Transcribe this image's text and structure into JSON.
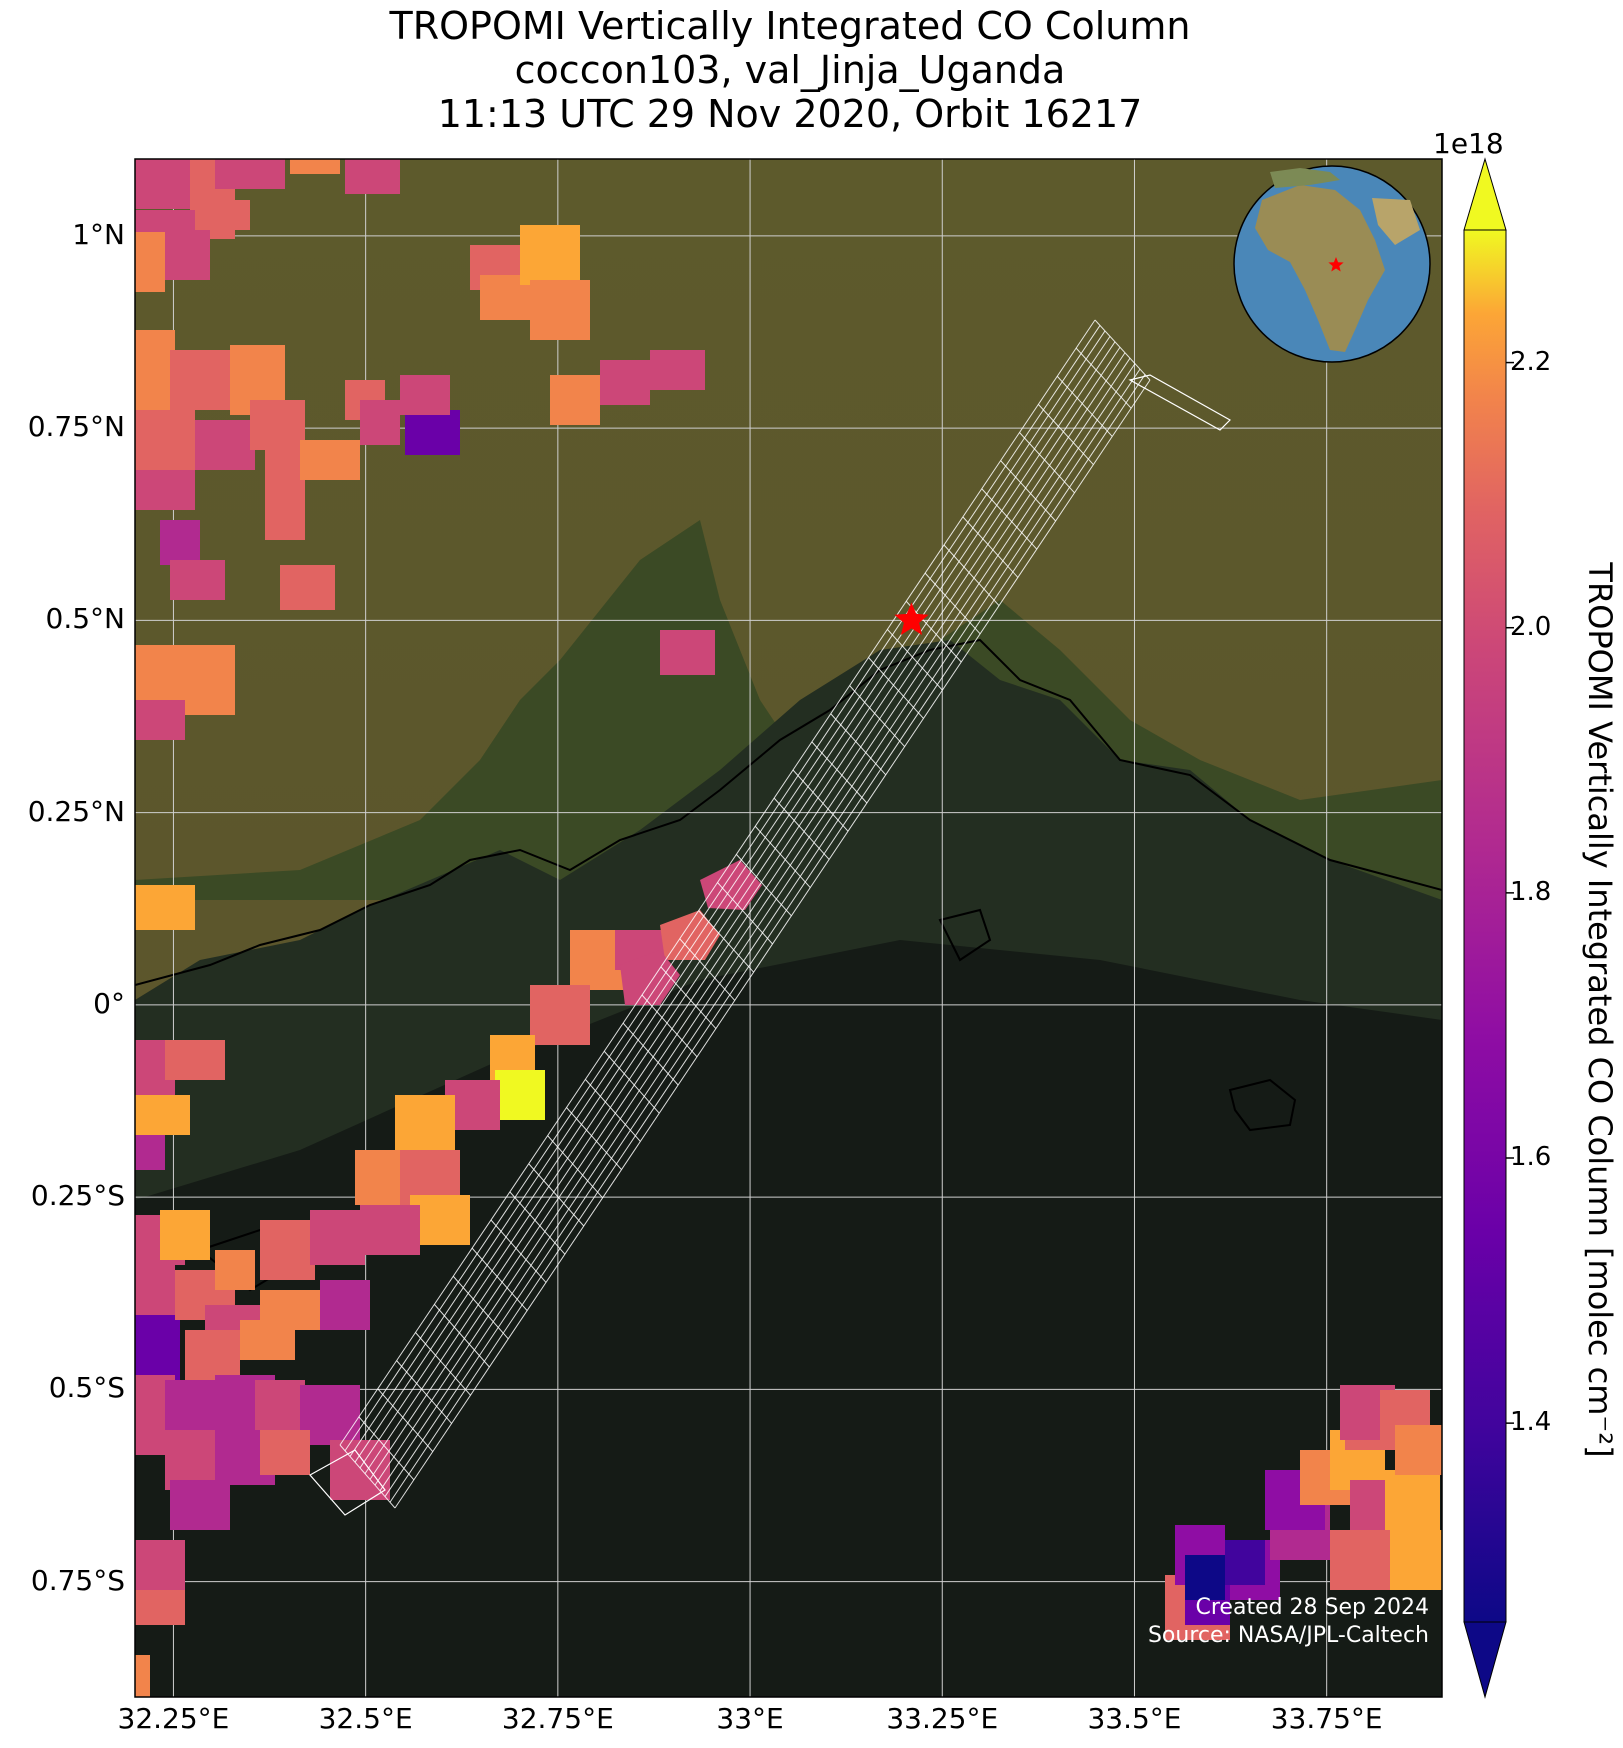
{
  "title": {
    "line1": "TROPOMI Vertically Integrated CO Column",
    "line2": "coccon103, val_Jinja_Uganda",
    "line3": "11:13 UTC 29 Nov 2020, Orbit 16217"
  },
  "axes": {
    "lat_ticks": [
      {
        "value": 1.0,
        "label": "1°N"
      },
      {
        "value": 0.75,
        "label": "0.75°N"
      },
      {
        "value": 0.5,
        "label": "0.5°N"
      },
      {
        "value": 0.25,
        "label": "0.25°N"
      },
      {
        "value": 0.0,
        "label": "0°"
      },
      {
        "value": -0.25,
        "label": "0.25°S"
      },
      {
        "value": -0.5,
        "label": "0.5°S"
      },
      {
        "value": -0.75,
        "label": "0.75°S"
      }
    ],
    "lon_ticks": [
      {
        "value": 32.25,
        "label": "32.25°E"
      },
      {
        "value": 32.5,
        "label": "32.5°E"
      },
      {
        "value": 32.75,
        "label": "32.75°E"
      },
      {
        "value": 33.0,
        "label": "33°E"
      },
      {
        "value": 33.25,
        "label": "33.25°E"
      },
      {
        "value": 33.5,
        "label": "33.5°E"
      },
      {
        "value": 33.75,
        "label": "33.75°E"
      }
    ],
    "lon_range": [
      32.2,
      33.9
    ],
    "lat_range": [
      -0.9,
      1.1
    ]
  },
  "colorbar": {
    "label": "TROPOMI Vertically Integrated CO Column [molec cm⁻²]",
    "exponent": "1e18",
    "ticks": [
      "2.2",
      "2.0",
      "1.8",
      "1.6",
      "1.4"
    ],
    "range": [
      1.25,
      2.3
    ],
    "colormap": "plasma",
    "extend": "both"
  },
  "station": {
    "name": "val_Jinja_Uganda",
    "lon": 33.21,
    "lat": 0.5,
    "marker_color": "#ff0000"
  },
  "credits": {
    "created": "Created 28 Sep 2024",
    "source": "Source: NASA/JPL-Caltech"
  }
}
